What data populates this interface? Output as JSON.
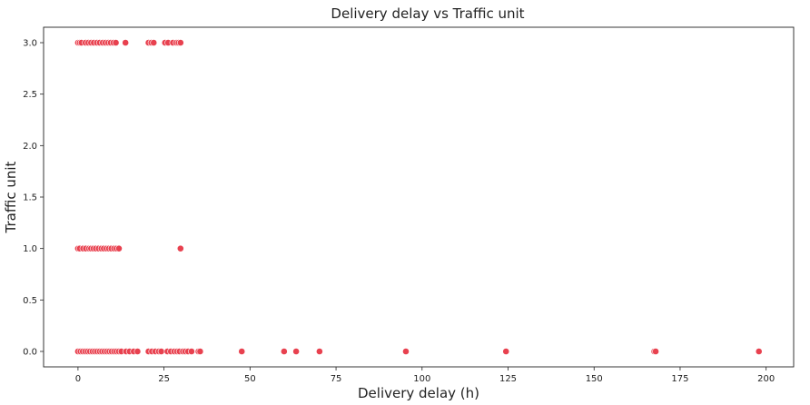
{
  "chart_data": {
    "type": "scatter",
    "title": "Delivery delay vs Traffic unit",
    "xlabel": "Delivery delay (h)",
    "ylabel": "Traffic unit",
    "xlim": [
      -10,
      208
    ],
    "ylim": [
      -0.15,
      3.15
    ],
    "xticks": [
      0,
      25,
      50,
      75,
      100,
      125,
      150,
      175,
      200
    ],
    "xtick_labels": [
      "0",
      "25",
      "50",
      "75",
      "100",
      "125",
      "150",
      "175",
      "200"
    ],
    "yticks": [
      0.0,
      0.5,
      1.0,
      1.5,
      2.0,
      2.5,
      3.0
    ],
    "ytick_labels": [
      "0.0",
      "0.5",
      "1.0",
      "1.5",
      "2.0",
      "2.5",
      "3.0"
    ],
    "grid": false,
    "point_color": "#e8414f",
    "series": [
      {
        "points": [
          [
            0.0,
            3.0
          ],
          [
            0.5,
            3.0
          ],
          [
            1.0,
            3.0
          ],
          [
            2.2,
            3.0
          ],
          [
            3.0,
            3.0
          ],
          [
            3.8,
            3.0
          ],
          [
            4.6,
            3.0
          ],
          [
            5.5,
            3.0
          ],
          [
            6.3,
            3.0
          ],
          [
            7.2,
            3.0
          ],
          [
            8.0,
            3.0
          ],
          [
            8.8,
            3.0
          ],
          [
            9.5,
            3.0
          ],
          [
            10.3,
            3.0
          ],
          [
            11.0,
            3.0
          ],
          [
            13.8,
            3.0
          ],
          [
            20.5,
            3.0
          ],
          [
            21.3,
            3.0
          ],
          [
            22.0,
            3.0
          ],
          [
            25.3,
            3.0
          ],
          [
            26.2,
            3.0
          ],
          [
            27.6,
            3.0
          ],
          [
            28.6,
            3.0
          ],
          [
            29.2,
            3.0
          ],
          [
            29.8,
            3.0
          ],
          [
            0.0,
            1.0
          ],
          [
            0.5,
            1.0
          ],
          [
            1.5,
            1.0
          ],
          [
            2.3,
            1.0
          ],
          [
            3.2,
            1.0
          ],
          [
            3.8,
            1.0
          ],
          [
            4.5,
            1.0
          ],
          [
            5.2,
            1.0
          ],
          [
            6.0,
            1.0
          ],
          [
            6.8,
            1.0
          ],
          [
            7.5,
            1.0
          ],
          [
            8.3,
            1.0
          ],
          [
            9.0,
            1.0
          ],
          [
            9.7,
            1.0
          ],
          [
            10.5,
            1.0
          ],
          [
            11.2,
            1.0
          ],
          [
            11.9,
            1.0
          ],
          [
            29.8,
            1.0
          ],
          [
            0.0,
            0.0
          ],
          [
            0.7,
            0.0
          ],
          [
            1.4,
            0.0
          ],
          [
            2.1,
            0.0
          ],
          [
            2.8,
            0.0
          ],
          [
            3.5,
            0.0
          ],
          [
            4.2,
            0.0
          ],
          [
            4.9,
            0.0
          ],
          [
            5.6,
            0.0
          ],
          [
            6.3,
            0.0
          ],
          [
            7.0,
            0.0
          ],
          [
            7.7,
            0.0
          ],
          [
            8.4,
            0.0
          ],
          [
            9.1,
            0.0
          ],
          [
            9.8,
            0.0
          ],
          [
            10.5,
            0.0
          ],
          [
            11.2,
            0.0
          ],
          [
            11.9,
            0.0
          ],
          [
            12.6,
            0.0
          ],
          [
            14.0,
            0.0
          ],
          [
            15.0,
            0.0
          ],
          [
            16.2,
            0.0
          ],
          [
            17.3,
            0.0
          ],
          [
            20.5,
            0.0
          ],
          [
            21.5,
            0.0
          ],
          [
            22.5,
            0.0
          ],
          [
            23.5,
            0.0
          ],
          [
            24.2,
            0.0
          ],
          [
            26.0,
            0.0
          ],
          [
            27.0,
            0.0
          ],
          [
            28.0,
            0.0
          ],
          [
            28.8,
            0.0
          ],
          [
            29.5,
            0.0
          ],
          [
            30.5,
            0.0
          ],
          [
            31.2,
            0.0
          ],
          [
            32.0,
            0.0
          ],
          [
            33.0,
            0.0
          ],
          [
            35.0,
            0.0
          ],
          [
            35.5,
            0.0
          ],
          [
            47.6,
            0.0
          ],
          [
            59.9,
            0.0
          ],
          [
            63.4,
            0.0
          ],
          [
            70.2,
            0.0
          ],
          [
            95.3,
            0.0
          ],
          [
            124.4,
            0.0
          ],
          [
            167.5,
            0.0
          ],
          [
            167.9,
            0.0
          ],
          [
            197.9,
            0.0
          ]
        ]
      }
    ]
  }
}
